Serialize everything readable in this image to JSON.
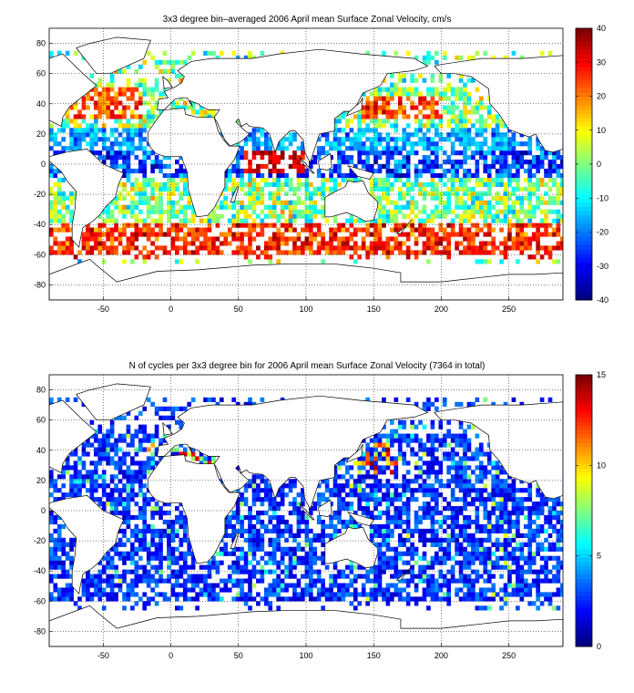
{
  "chart_data": [
    {
      "type": "heatmap",
      "title": "3x3 degree bin–averaged 2006 April mean Surface Zonal Velocity, cm/s",
      "xlabel": "",
      "ylabel": "",
      "xlim": [
        -90,
        290
      ],
      "ylim": [
        -90,
        90
      ],
      "x_ticks": [
        "-50",
        "0",
        "50",
        "100",
        "150",
        "200",
        "250"
      ],
      "y_ticks": [
        "80",
        "60",
        "40",
        "20",
        "0",
        "-20",
        "-40",
        "-60",
        "-80"
      ],
      "grid": true,
      "grid_style": "dotted",
      "bin_size_deg": 3,
      "colorbar": {
        "range": [
          -40,
          40
        ],
        "ticks": [
          "40",
          "30",
          "20",
          "10",
          "0",
          "-10",
          "-20",
          "-30",
          "-40"
        ],
        "colormap": "jet"
      },
      "field_pattern": "zonal velocity; strong positive (red) in Antarctic Circumpolar Current near -50..-60 lat and equatorial Indian Ocean; negative (blue) along equatorial Pacific/Atlantic; mixed elsewhere"
    },
    {
      "type": "heatmap",
      "title": "N of cycles per 3x3 degree bin for 2006 April mean Surface Zonal Velocity (7364 in total)",
      "xlabel": "",
      "ylabel": "",
      "xlim": [
        -90,
        290
      ],
      "ylim": [
        -90,
        90
      ],
      "x_ticks": [
        "-50",
        "0",
        "50",
        "100",
        "150",
        "200",
        "250"
      ],
      "y_ticks": [
        "80",
        "60",
        "40",
        "20",
        "0",
        "-20",
        "-40",
        "-60",
        "-80"
      ],
      "grid": true,
      "grid_style": "dotted",
      "bin_size_deg": 3,
      "colorbar": {
        "range": [
          0,
          15
        ],
        "ticks": [
          "15",
          "10",
          "5",
          "0"
        ],
        "colormap": "jet"
      },
      "field_pattern": "mostly low counts (blue, 1-4); higher counts (orange/red 8-15) near Kuroshio 25-45N 140-165E and scattered North Atlantic"
    }
  ],
  "colors": {
    "coast": "#000000",
    "background": "#ffffff",
    "grid": "#000000"
  }
}
